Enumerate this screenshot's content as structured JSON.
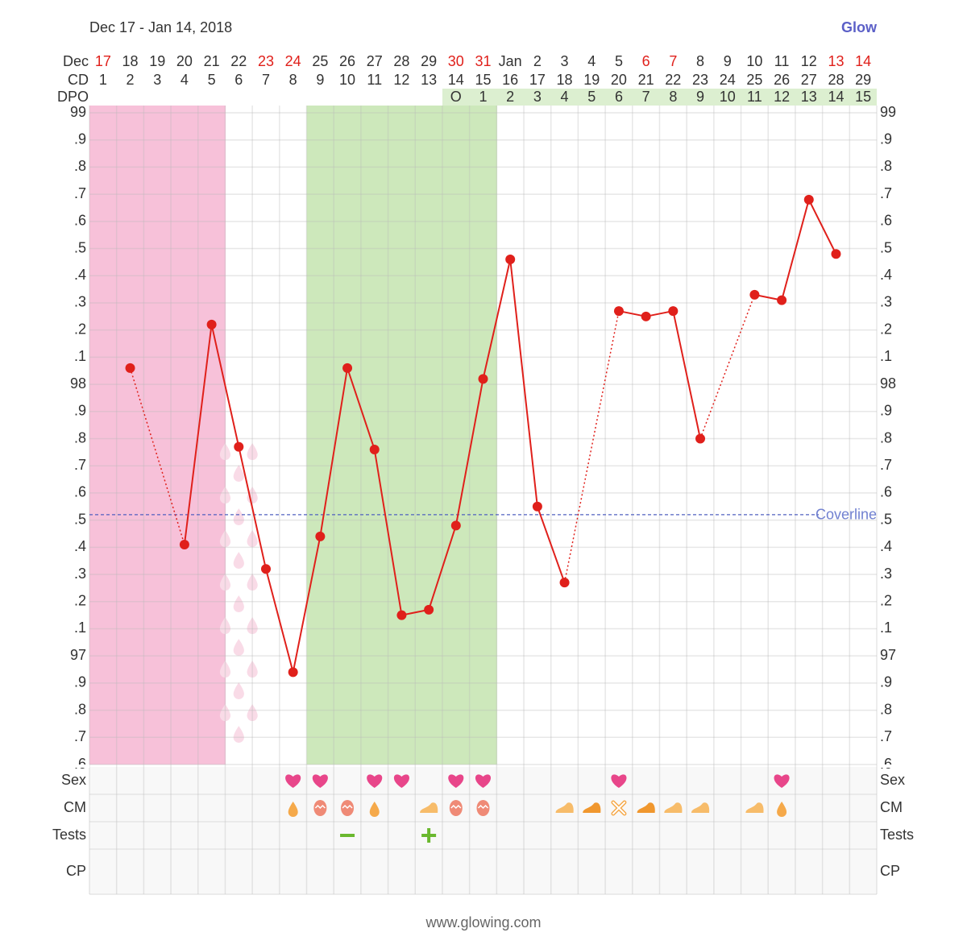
{
  "chart_data": {
    "type": "line",
    "title": "Dec 17 - Jan 14, 2018",
    "brand": "Glow",
    "footer": "www.glowing.com",
    "row_labels": {
      "date": "Dec",
      "cd": "CD",
      "dpo": "DPO"
    },
    "categories": [
      "17",
      "18",
      "19",
      "20",
      "21",
      "22",
      "23",
      "24",
      "25",
      "26",
      "27",
      "28",
      "29",
      "30",
      "31",
      "Jan",
      "2",
      "3",
      "4",
      "5",
      "6",
      "7",
      "8",
      "9",
      "10",
      "11",
      "12",
      "13",
      "14"
    ],
    "weekend": [
      true,
      false,
      false,
      false,
      false,
      false,
      true,
      true,
      false,
      false,
      false,
      false,
      false,
      true,
      true,
      false,
      false,
      false,
      false,
      false,
      true,
      true,
      false,
      false,
      false,
      false,
      false,
      true,
      true
    ],
    "weekend_color": "#e0201b",
    "cd": [
      1,
      2,
      3,
      4,
      5,
      6,
      7,
      8,
      9,
      10,
      11,
      12,
      13,
      14,
      15,
      16,
      17,
      18,
      19,
      20,
      21,
      22,
      23,
      24,
      25,
      26,
      27,
      28,
      29
    ],
    "dpo": [
      null,
      null,
      null,
      null,
      null,
      null,
      null,
      null,
      null,
      null,
      null,
      null,
      null,
      "O",
      1,
      2,
      3,
      4,
      5,
      6,
      7,
      8,
      9,
      10,
      11,
      12,
      13,
      14,
      15
    ],
    "series": [
      {
        "name": "Temperature",
        "color": "#e0201b",
        "values": [
          null,
          98.06,
          null,
          97.41,
          98.22,
          97.77,
          97.32,
          96.94,
          97.44,
          98.06,
          97.76,
          97.15,
          97.17,
          97.48,
          98.02,
          98.46,
          97.55,
          97.27,
          null,
          98.27,
          98.25,
          98.27,
          97.8,
          null,
          98.33,
          98.31,
          98.68,
          98.48,
          null
        ]
      }
    ],
    "coverline": 97.52,
    "coverline_label": "Coverline",
    "coverline_color": "#5060c0",
    "period_cd": [
      1,
      2,
      3,
      4,
      5
    ],
    "period_color": "#f7c1d9",
    "spotting_cd": [
      6
    ],
    "fertile_cd": [
      9,
      10,
      11,
      12,
      13,
      14,
      15
    ],
    "fertile_color": "#cde8bb",
    "ylim": [
      96.6,
      99
    ],
    "yticks": [
      {
        "value": 96.6,
        "label": ".6"
      },
      {
        "value": 96.7,
        "label": ".7"
      },
      {
        "value": 96.8,
        "label": ".8"
      },
      {
        "value": 96.9,
        "label": ".9"
      },
      97,
      {
        "value": 97.1,
        "label": ".1"
      },
      {
        "value": 97.2,
        "label": ".2"
      },
      {
        "value": 97.3,
        "label": ".3"
      },
      {
        "value": 97.4,
        "label": ".4"
      },
      {
        "value": 97.5,
        "label": ".5"
      },
      {
        "value": 97.6,
        "label": ".6"
      },
      {
        "value": 97.7,
        "label": ".7"
      },
      {
        "value": 97.8,
        "label": ".8"
      },
      {
        "value": 97.9,
        "label": ".9"
      },
      98,
      {
        "value": 98.1,
        "label": ".1"
      },
      {
        "value": 98.2,
        "label": ".2"
      },
      {
        "value": 98.3,
        "label": ".3"
      },
      {
        "value": 98.4,
        "label": ".4"
      },
      {
        "value": 98.5,
        "label": ".5"
      },
      {
        "value": 98.6,
        "label": ".6"
      },
      {
        "value": 98.7,
        "label": ".7"
      },
      {
        "value": 98.8,
        "label": ".8"
      },
      {
        "value": 98.9,
        "label": ".9"
      },
      99
    ],
    "grid": true,
    "log_rows": [
      "Sex",
      "CM",
      "Tests",
      "CP"
    ],
    "sex_cd": [
      8,
      9,
      11,
      12,
      14,
      15,
      20,
      26
    ],
    "cm": [
      {
        "cd": 8,
        "kind": "watery"
      },
      {
        "cd": 9,
        "kind": "eggwhite"
      },
      {
        "cd": 10,
        "kind": "eggwhite"
      },
      {
        "cd": 11,
        "kind": "watery"
      },
      {
        "cd": 13,
        "kind": "creamy"
      },
      {
        "cd": 14,
        "kind": "eggwhite"
      },
      {
        "cd": 15,
        "kind": "eggwhite"
      },
      {
        "cd": 18,
        "kind": "creamy"
      },
      {
        "cd": 19,
        "kind": "sticky"
      },
      {
        "cd": 20,
        "kind": "other"
      },
      {
        "cd": 21,
        "kind": "sticky"
      },
      {
        "cd": 22,
        "kind": "creamy"
      },
      {
        "cd": 23,
        "kind": "creamy"
      },
      {
        "cd": 25,
        "kind": "creamy"
      },
      {
        "cd": 26,
        "kind": "watery"
      }
    ],
    "tests": [
      {
        "cd": 10,
        "result": "negative"
      },
      {
        "cd": 13,
        "result": "positive"
      }
    ]
  }
}
